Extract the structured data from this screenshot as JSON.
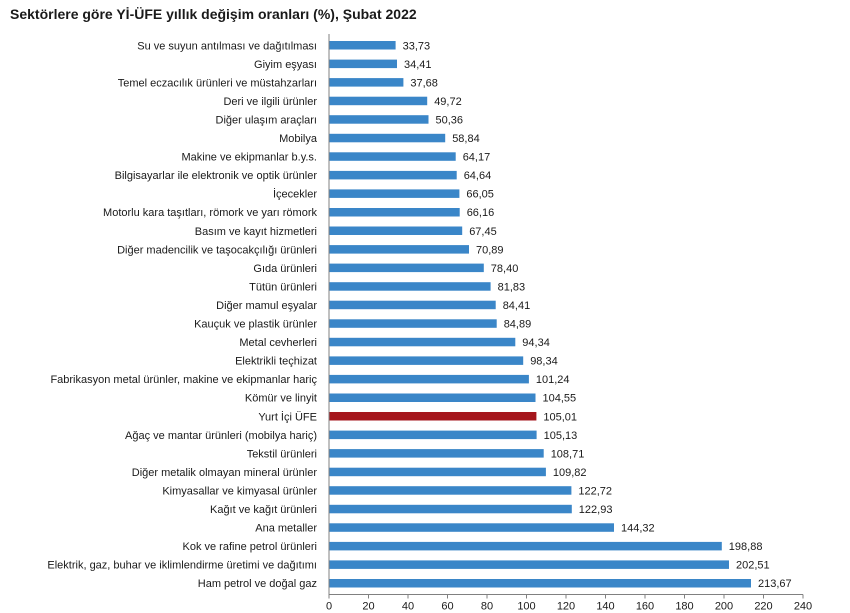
{
  "chart_data": {
    "type": "bar",
    "orientation": "horizontal",
    "title": "Sektörlere göre Yİ-ÜFE yıllık değişim oranları (%), Şubat 2022",
    "xlabel": "",
    "ylabel": "",
    "xlim": [
      0,
      240
    ],
    "xticks": [
      0,
      20,
      40,
      60,
      80,
      100,
      120,
      140,
      160,
      180,
      200,
      220,
      240
    ],
    "highlight_category": "Yurt İçi ÜFE",
    "colors": {
      "bar": "#3a86c8",
      "highlight": "#a5161c",
      "axis": "#808080"
    },
    "categories": [
      "Su ve suyun antılması ve dağıtılması",
      "Giyim eşyası",
      "Temel eczacılık ürünleri ve müstahzarları",
      "Deri ve ilgili ürünler",
      "Diğer ulaşım araçları",
      "Mobilya",
      "Makine ve ekipmanlar b.y.s.",
      "Bilgisayarlar ile elektronik ve optik ürünler",
      "İçecekler",
      "Motorlu kara taşıtları, römork ve yarı römork",
      "Basım ve kayıt hizmetleri",
      "Diğer madencilik ve taşocakçılığı ürünleri",
      "Gıda ürünleri",
      "Tütün ürünleri",
      "Diğer mamul eşyalar",
      "Kauçuk ve plastik ürünler",
      "Metal cevherleri",
      "Elektrikli teçhizat",
      "Fabrikasyon metal ürünler, makine ve ekipmanlar hariç",
      "Kömür ve linyit",
      "Yurt İçi ÜFE",
      "Ağaç ve mantar ürünleri (mobilya hariç)",
      "Tekstil ürünleri",
      "Diğer metalik olmayan mineral ürünler",
      "Kimyasallar ve kimyasal ürünler",
      "Kağıt ve kağıt ürünleri",
      "Ana metaller",
      "Kok ve rafine petrol ürünleri",
      "Elektrik, gaz, buhar ve iklimlendirme üretimi ve dağıtımı",
      "Ham petrol ve doğal gaz"
    ],
    "values": [
      33.73,
      34.41,
      37.68,
      49.72,
      50.36,
      58.84,
      64.17,
      64.64,
      66.05,
      66.16,
      67.45,
      70.89,
      78.4,
      81.83,
      84.41,
      84.89,
      94.34,
      98.34,
      101.24,
      104.55,
      105.01,
      105.13,
      108.71,
      109.82,
      122.72,
      122.93,
      144.32,
      198.88,
      202.51,
      213.67
    ],
    "value_labels": [
      "33,73",
      "34,41",
      "37,68",
      "49,72",
      "50,36",
      "58,84",
      "64,17",
      "64,64",
      "66,05",
      "66,16",
      "67,45",
      "70,89",
      "78,40",
      "81,83",
      "84,41",
      "84,89",
      "94,34",
      "98,34",
      "101,24",
      "104,55",
      "105,01",
      "105,13",
      "108,71",
      "109,82",
      "122,72",
      "122,93",
      "144,32",
      "198,88",
      "202,51",
      "213,67"
    ]
  }
}
